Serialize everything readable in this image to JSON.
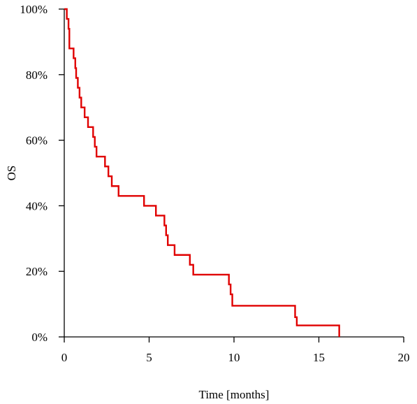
{
  "chart_data": {
    "type": "line",
    "step": true,
    "title": "",
    "xlabel": "Time [months]",
    "ylabel": "OS",
    "xlim": [
      0,
      20
    ],
    "ylim": [
      0,
      1
    ],
    "x_ticks": [
      0,
      5,
      10,
      15,
      20
    ],
    "x_tick_labels": [
      "0",
      "5",
      "10",
      "15",
      "20"
    ],
    "y_ticks": [
      0,
      0.2,
      0.4,
      0.6,
      0.8,
      1.0
    ],
    "y_tick_labels": [
      "0%",
      "20%",
      "40%",
      "60%",
      "80%",
      "100%"
    ],
    "grid": false,
    "legend": "none",
    "series": [
      {
        "color": "#e00000",
        "x": [
          0,
          0.15,
          0.25,
          0.3,
          0.55,
          0.65,
          0.7,
          0.8,
          0.9,
          1.0,
          1.2,
          1.4,
          1.7,
          1.8,
          1.9,
          2.0,
          2.4,
          2.6,
          2.8,
          3.0,
          3.2,
          4.7,
          5.4,
          5.9,
          6.0,
          6.1,
          6.5,
          7.4,
          7.6,
          9.7,
          9.8,
          9.9,
          13.6,
          13.7,
          16.2
        ],
        "y": [
          1.0,
          0.97,
          0.94,
          0.88,
          0.85,
          0.82,
          0.79,
          0.76,
          0.73,
          0.7,
          0.67,
          0.64,
          0.61,
          0.58,
          0.55,
          0.55,
          0.52,
          0.49,
          0.46,
          0.46,
          0.43,
          0.4,
          0.37,
          0.34,
          0.31,
          0.28,
          0.25,
          0.22,
          0.19,
          0.16,
          0.13,
          0.095,
          0.06,
          0.035,
          0.0
        ]
      }
    ]
  }
}
